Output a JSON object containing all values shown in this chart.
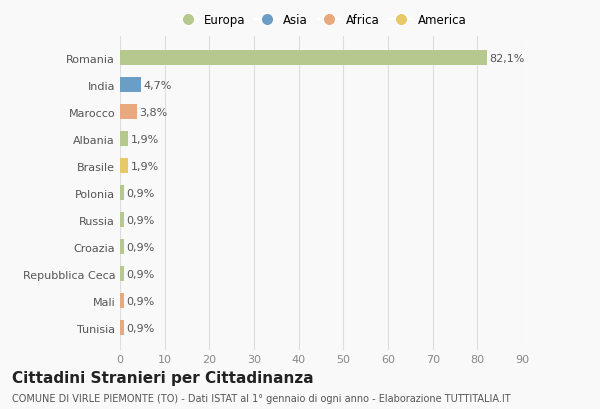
{
  "categories": [
    "Romania",
    "India",
    "Marocco",
    "Albania",
    "Brasile",
    "Polonia",
    "Russia",
    "Croazia",
    "Repubblica Ceca",
    "Mali",
    "Tunisia"
  ],
  "values": [
    82.1,
    4.7,
    3.8,
    1.9,
    1.9,
    0.9,
    0.9,
    0.9,
    0.9,
    0.9,
    0.9
  ],
  "labels": [
    "82,1%",
    "4,7%",
    "3,8%",
    "1,9%",
    "1,9%",
    "0,9%",
    "0,9%",
    "0,9%",
    "0,9%",
    "0,9%",
    "0,9%"
  ],
  "colors": [
    "#b5c98e",
    "#6a9ec4",
    "#e8a97e",
    "#b5c98e",
    "#e8c96a",
    "#b5c98e",
    "#b5c98e",
    "#b5c98e",
    "#b5c98e",
    "#e8a97e",
    "#e8a97e"
  ],
  "legend_labels": [
    "Europa",
    "Asia",
    "Africa",
    "America"
  ],
  "legend_colors": [
    "#b5c98e",
    "#6a9ec4",
    "#e8a97e",
    "#e8c96a"
  ],
  "title": "Cittadini Stranieri per Cittadinanza",
  "subtitle": "COMUNE DI VIRLE PIEMONTE (TO) - Dati ISTAT al 1° gennaio di ogni anno - Elaborazione TUTTITALIA.IT",
  "xlim": [
    0,
    90
  ],
  "xticks": [
    0,
    10,
    20,
    30,
    40,
    50,
    60,
    70,
    80,
    90
  ],
  "background_color": "#f9f9f9",
  "grid_color": "#dddddd",
  "bar_height": 0.55,
  "title_fontsize": 11,
  "subtitle_fontsize": 7,
  "tick_label_fontsize": 8,
  "value_label_fontsize": 8,
  "legend_fontsize": 8.5
}
